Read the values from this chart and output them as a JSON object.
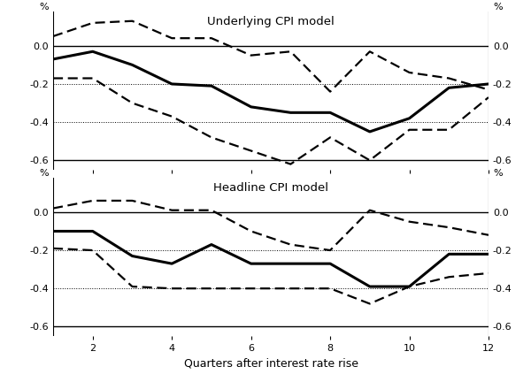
{
  "quarters": [
    1,
    2,
    3,
    4,
    5,
    6,
    7,
    8,
    9,
    10,
    11,
    12
  ],
  "underlying_center": [
    -0.07,
    -0.03,
    -0.1,
    -0.2,
    -0.21,
    -0.32,
    -0.35,
    -0.35,
    -0.45,
    -0.38,
    -0.22,
    -0.2
  ],
  "underlying_upper": [
    0.05,
    0.12,
    0.13,
    0.04,
    0.04,
    -0.05,
    -0.03,
    -0.24,
    -0.03,
    -0.14,
    -0.17,
    -0.23
  ],
  "underlying_lower": [
    -0.17,
    -0.17,
    -0.3,
    -0.37,
    -0.48,
    -0.55,
    -0.62,
    -0.48,
    -0.6,
    -0.44,
    -0.44,
    -0.27
  ],
  "headline_center": [
    -0.1,
    -0.1,
    -0.23,
    -0.27,
    -0.17,
    -0.27,
    -0.27,
    -0.27,
    -0.39,
    -0.39,
    -0.22,
    -0.22
  ],
  "headline_upper": [
    0.02,
    0.06,
    0.06,
    0.01,
    0.01,
    -0.1,
    -0.17,
    -0.2,
    0.01,
    -0.05,
    -0.08,
    -0.12
  ],
  "headline_lower": [
    -0.19,
    -0.2,
    -0.39,
    -0.4,
    -0.4,
    -0.4,
    -0.4,
    -0.4,
    -0.48,
    -0.39,
    -0.34,
    -0.32
  ],
  "ylim": [
    -0.65,
    0.18
  ],
  "yticks": [
    0.0,
    -0.2,
    -0.4,
    -0.6
  ],
  "xlabel": "Quarters after interest rate rise",
  "title_underlying": "Underlying CPI model",
  "title_headline": "Headline CPI model",
  "pct_label": "%",
  "background_color": "#ffffff",
  "line_color": "#000000",
  "dashed_color": "#000000"
}
